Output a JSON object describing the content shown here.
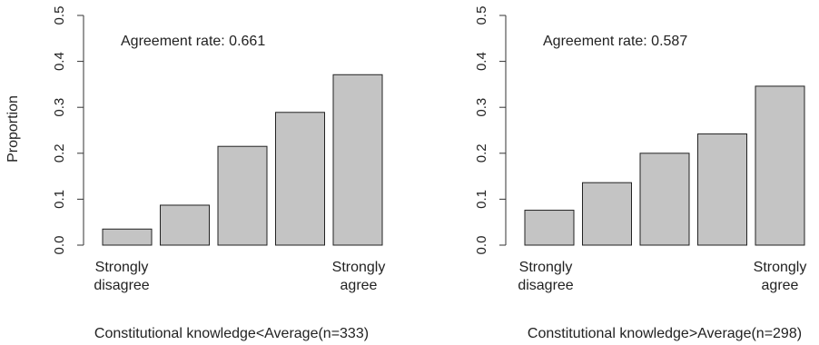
{
  "shared_ylabel": "Proportion",
  "chart_data": [
    {
      "type": "bar",
      "categories": [
        "1",
        "2",
        "3",
        "4",
        "5"
      ],
      "values": [
        0.035,
        0.087,
        0.215,
        0.289,
        0.371
      ],
      "ylim": [
        0,
        0.5
      ],
      "yticks": [
        "0.0",
        "0.1",
        "0.2",
        "0.3",
        "0.4",
        "0.5"
      ],
      "annotation": "Agreement rate: 0.661",
      "left_category_label": [
        "Strongly",
        "disagree"
      ],
      "right_category_label": [
        "Strongly",
        "agree"
      ],
      "xlabel": "Constitutional knowledge<Average(n=333)",
      "bar_color": "#c4c4c4",
      "grid": false
    },
    {
      "type": "bar",
      "categories": [
        "1",
        "2",
        "3",
        "4",
        "5"
      ],
      "values": [
        0.076,
        0.136,
        0.2,
        0.242,
        0.346
      ],
      "ylim": [
        0,
        0.5
      ],
      "yticks": [
        "0.0",
        "0.1",
        "0.2",
        "0.3",
        "0.4",
        "0.5"
      ],
      "annotation": "Agreement rate: 0.587",
      "left_category_label": [
        "Strongly",
        "disagree"
      ],
      "right_category_label": [
        "Strongly",
        "agree"
      ],
      "xlabel": "Constitutional knowledge>Average(n=298)",
      "bar_color": "#c4c4c4",
      "grid": false
    }
  ]
}
